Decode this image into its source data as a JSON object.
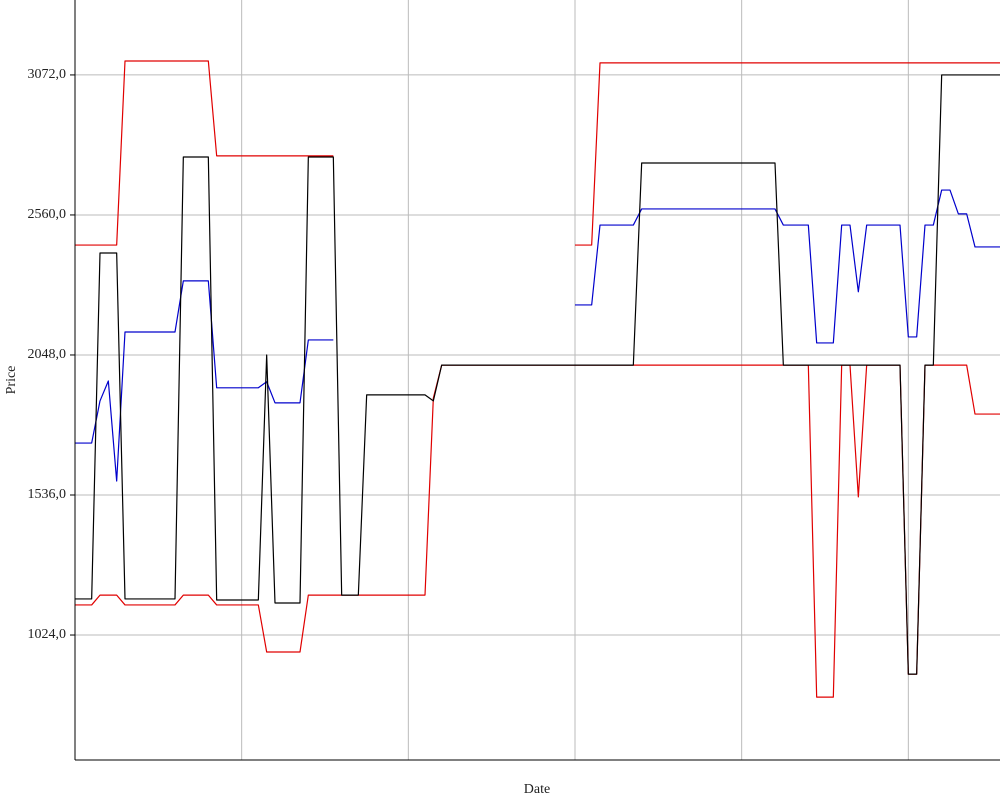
{
  "chart_data": {
    "type": "line",
    "y_label": "Price",
    "x_label": "Date",
    "x": [
      0,
      1,
      2,
      3,
      4,
      5,
      6,
      7,
      8,
      9,
      10,
      11,
      12,
      13,
      14,
      15,
      16,
      17,
      18,
      19,
      20,
      21,
      22,
      23,
      24,
      25,
      26,
      27,
      28,
      29,
      30,
      31,
      32,
      33,
      34,
      35,
      36,
      37,
      38,
      39,
      40,
      41,
      42,
      43,
      44,
      45,
      46,
      47,
      48,
      49,
      50,
      51,
      52,
      53,
      54,
      55,
      56,
      57,
      58,
      59,
      60,
      61,
      62,
      63,
      64,
      65,
      66,
      67,
      68,
      69,
      70,
      71,
      72,
      73,
      74,
      75,
      76,
      77,
      78,
      79,
      80,
      81,
      82,
      83,
      84,
      85,
      86,
      87,
      88,
      89,
      90,
      91,
      92,
      93,
      94,
      95,
      96,
      97,
      98,
      99,
      100,
      101,
      102,
      103,
      104,
      105,
      106,
      107,
      108,
      109,
      110,
      111
    ],
    "xlim": [
      0,
      111
    ],
    "xticks": [
      20,
      40,
      60,
      80,
      100
    ],
    "ylim": [
      567,
      3346
    ],
    "yticks": [
      {
        "value": 1024,
        "label": "1024,0"
      },
      {
        "value": 1536,
        "label": "1536,0"
      },
      {
        "value": 2048,
        "label": "2048,0"
      },
      {
        "value": 2560,
        "label": "2560,0"
      },
      {
        "value": 3072,
        "label": "3072,0"
      }
    ],
    "grid": true,
    "series": [
      {
        "color": "#e00000",
        "values": [
          2450,
          2450,
          2450,
          2450,
          2450,
          2450,
          3123,
          3123,
          3123,
          3123,
          3123,
          3123,
          3123,
          3123,
          3123,
          3123,
          3123,
          2776,
          2776,
          2776,
          2776,
          2776,
          2776,
          2776,
          2776,
          2776,
          2776,
          2776,
          2776,
          2776,
          2776,
          2776,
          null,
          null,
          null,
          null,
          null,
          null,
          null,
          null,
          null,
          null,
          null,
          null,
          null,
          null,
          null,
          null,
          null,
          null,
          null,
          null,
          null,
          null,
          null,
          null,
          null,
          null,
          null,
          null,
          2450,
          2450,
          2450,
          3116,
          3116,
          3116,
          3116,
          3116,
          3116,
          3116,
          3116,
          3116,
          3116,
          3116,
          3116,
          3116,
          3116,
          3116,
          3116,
          3116,
          3116,
          3116,
          3116,
          3116,
          3116,
          3116,
          3116,
          3116,
          3116,
          3116,
          3116,
          3116,
          3116,
          3116,
          3116,
          3116,
          3116,
          3116,
          3116,
          3116,
          3116,
          3116,
          3116,
          3116,
          3116,
          3116,
          3116,
          3116,
          3116,
          3116,
          3116,
          3116
        ]
      },
      {
        "color": "#e00000",
        "values": [
          1134,
          1134,
          1134,
          1170,
          1170,
          1170,
          1134,
          1134,
          1134,
          1134,
          1134,
          1134,
          1134,
          1170,
          1170,
          1170,
          1170,
          1134,
          1134,
          1134,
          1134,
          1134,
          1134,
          962,
          962,
          962,
          962,
          962,
          1170,
          1170,
          1170,
          1170,
          1170,
          1170,
          1170,
          1170,
          1170,
          1170,
          1170,
          1170,
          1170,
          1170,
          1170,
          1890,
          2011,
          2011,
          2011,
          2011,
          2011,
          2011,
          2011,
          2011,
          2011,
          2011,
          2011,
          2011,
          2011,
          2011,
          2011,
          2011,
          2011,
          2011,
          2011,
          2011,
          2011,
          2011,
          2011,
          2011,
          2011,
          2011,
          2011,
          2011,
          2011,
          2011,
          2011,
          2011,
          2011,
          2011,
          2011,
          2011,
          2011,
          2011,
          2011,
          2011,
          2011,
          2011,
          2011,
          2011,
          2011,
          797,
          797,
          797,
          2011,
          2011,
          1529,
          2011,
          2011,
          2011,
          2011,
          2011,
          881,
          881,
          2011,
          2011,
          2011,
          2011,
          2011,
          2011,
          1832,
          1832,
          1832,
          1832
        ]
      },
      {
        "color": "#0000cc",
        "values": [
          1726,
          1726,
          1726,
          1880,
          1953,
          1587,
          2132,
          2132,
          2132,
          2132,
          2132,
          2132,
          2132,
          2319,
          2319,
          2319,
          2319,
          1928,
          1928,
          1928,
          1928,
          1928,
          1928,
          1950,
          1873,
          1873,
          1873,
          1873,
          2103,
          2103,
          2103,
          2103,
          null,
          null,
          null,
          null,
          null,
          null,
          null,
          null,
          null,
          null,
          null,
          null,
          null,
          null,
          null,
          null,
          null,
          null,
          null,
          null,
          null,
          null,
          null,
          null,
          null,
          null,
          null,
          null,
          2231,
          2231,
          2231,
          2523,
          2523,
          2523,
          2523,
          2523,
          2582,
          2582,
          2582,
          2582,
          2582,
          2582,
          2582,
          2582,
          2582,
          2582,
          2582,
          2582,
          2582,
          2582,
          2582,
          2582,
          2582,
          2523,
          2523,
          2523,
          2523,
          2092,
          2092,
          2092,
          2523,
          2523,
          2279,
          2523,
          2523,
          2523,
          2523,
          2523,
          2114,
          2114,
          2523,
          2523,
          2651,
          2651,
          2564,
          2564,
          2443,
          2443,
          2443,
          2443
        ]
      },
      {
        "color": "#000000",
        "values": [
          1156,
          1156,
          1156,
          2421,
          2421,
          2421,
          1156,
          1156,
          1156,
          1156,
          1156,
          1156,
          1156,
          2772,
          2772,
          2772,
          2772,
          1152,
          1152,
          1152,
          1152,
          1152,
          1152,
          2048,
          1141,
          1141,
          1141,
          1141,
          2772,
          2772,
          2772,
          2772,
          1170,
          1170,
          1170,
          1902,
          1902,
          1902,
          1902,
          1902,
          1902,
          1902,
          1902,
          1880,
          2011,
          2011,
          2011,
          2011,
          2011,
          2011,
          2011,
          2011,
          2011,
          2011,
          2011,
          2011,
          2011,
          2011,
          2011,
          2011,
          2011,
          2011,
          2011,
          2011,
          2011,
          2011,
          2011,
          2011,
          2750,
          2750,
          2750,
          2750,
          2750,
          2750,
          2750,
          2750,
          2750,
          2750,
          2750,
          2750,
          2750,
          2750,
          2750,
          2750,
          2750,
          2011,
          2011,
          2011,
          2011,
          2011,
          2011,
          2011,
          2011,
          2011,
          2011,
          2011,
          2011,
          2011,
          2011,
          2011,
          881,
          881,
          2011,
          2011,
          3072,
          3072,
          3072,
          3072,
          3072,
          3072,
          3072,
          3072
        ]
      }
    ]
  }
}
